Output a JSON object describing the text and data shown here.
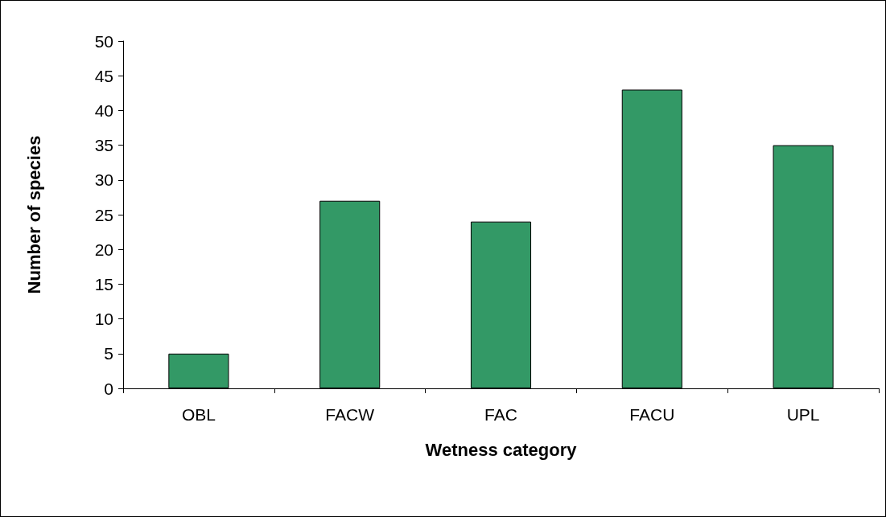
{
  "chart_data": {
    "type": "bar",
    "xlabel": "Wetness category",
    "ylabel": "Number of species",
    "categories": [
      "OBL",
      "FACW",
      "FAC",
      "FACU",
      "UPL"
    ],
    "values": [
      5,
      27,
      24,
      43,
      35
    ],
    "color": "#339966",
    "ylim": [
      0,
      50
    ],
    "yticks": [
      0,
      5,
      10,
      15,
      20,
      25,
      30,
      35,
      40,
      45,
      50
    ],
    "grid": false
  }
}
